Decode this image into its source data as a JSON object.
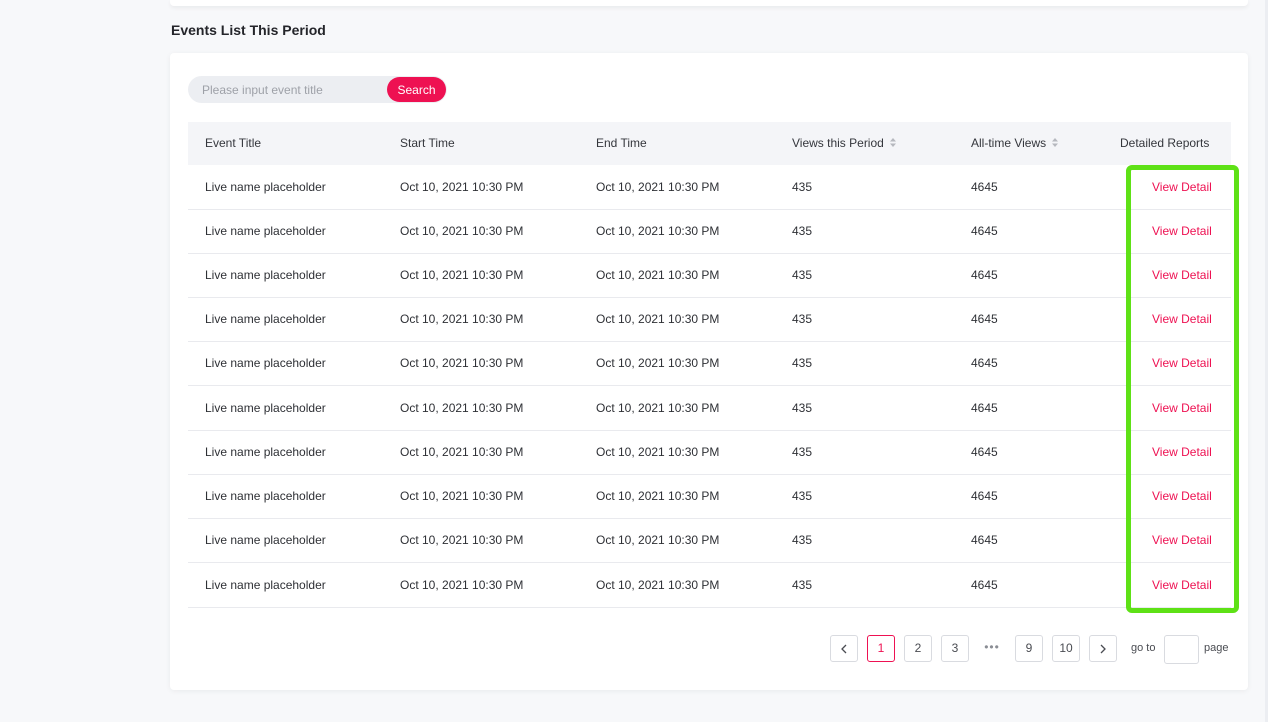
{
  "section_title": "Events List This Period",
  "search": {
    "placeholder": "Please input event title",
    "value": "",
    "button_label": "Search"
  },
  "table": {
    "columns": [
      {
        "label": "Event Title",
        "sortable": false
      },
      {
        "label": "Start Time",
        "sortable": false
      },
      {
        "label": "End Time",
        "sortable": false
      },
      {
        "label": "Views this Period",
        "sortable": true
      },
      {
        "label": "All-time Views",
        "sortable": true
      },
      {
        "label": "Detailed Reports",
        "sortable": false
      }
    ],
    "rows": [
      {
        "title": "Live name placeholder",
        "start": "Oct 10, 2021 10:30 PM",
        "end": "Oct 10, 2021 10:30 PM",
        "views_period": "435",
        "views_all": "4645",
        "link": "View Detail"
      },
      {
        "title": "Live name placeholder",
        "start": "Oct 10, 2021 10:30 PM",
        "end": "Oct 10, 2021 10:30 PM",
        "views_period": "435",
        "views_all": "4645",
        "link": "View Detail"
      },
      {
        "title": "Live name placeholder",
        "start": "Oct 10, 2021 10:30 PM",
        "end": "Oct 10, 2021 10:30 PM",
        "views_period": "435",
        "views_all": "4645",
        "link": "View Detail"
      },
      {
        "title": "Live name placeholder",
        "start": "Oct 10, 2021 10:30 PM",
        "end": "Oct 10, 2021 10:30 PM",
        "views_period": "435",
        "views_all": "4645",
        "link": "View Detail"
      },
      {
        "title": "Live name placeholder",
        "start": "Oct 10, 2021 10:30 PM",
        "end": "Oct 10, 2021 10:30 PM",
        "views_period": "435",
        "views_all": "4645",
        "link": "View Detail"
      },
      {
        "title": "Live name placeholder",
        "start": "Oct 10, 2021 10:30 PM",
        "end": "Oct 10, 2021 10:30 PM",
        "views_period": "435",
        "views_all": "4645",
        "link": "View Detail"
      },
      {
        "title": "Live name placeholder",
        "start": "Oct 10, 2021 10:30 PM",
        "end": "Oct 10, 2021 10:30 PM",
        "views_period": "435",
        "views_all": "4645",
        "link": "View Detail"
      },
      {
        "title": "Live name placeholder",
        "start": "Oct 10, 2021 10:30 PM",
        "end": "Oct 10, 2021 10:30 PM",
        "views_period": "435",
        "views_all": "4645",
        "link": "View Detail"
      },
      {
        "title": "Live name placeholder",
        "start": "Oct 10, 2021 10:30 PM",
        "end": "Oct 10, 2021 10:30 PM",
        "views_period": "435",
        "views_all": "4645",
        "link": "View Detail"
      },
      {
        "title": "Live name placeholder",
        "start": "Oct 10, 2021 10:30 PM",
        "end": "Oct 10, 2021 10:30 PM",
        "views_period": "435",
        "views_all": "4645",
        "link": "View Detail"
      }
    ]
  },
  "pagination": {
    "prev_icon": "chevron-left-icon",
    "next_icon": "chevron-right-icon",
    "pages": [
      "1",
      "2",
      "3"
    ],
    "ellipsis": "•••",
    "tail_pages": [
      "9",
      "10"
    ],
    "current": "1",
    "goto_label": "go to",
    "goto_value": "",
    "page_label": "page"
  },
  "colors": {
    "accent": "#ee1152",
    "highlight": "#5ee116",
    "header_bg": "#f4f5f8",
    "page_bg": "#f7f8fa"
  }
}
